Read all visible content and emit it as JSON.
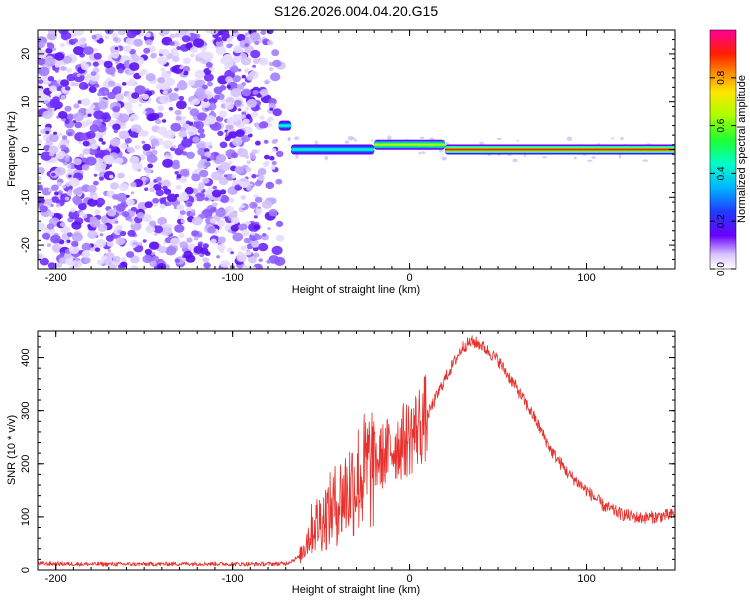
{
  "figure": {
    "title": "S126.2026.004.04.20.G15"
  },
  "chart_data": [
    {
      "type": "heatmap",
      "xlabel": "Height of straight line (km)",
      "ylabel": "Frequency (Hz)",
      "xlim": [
        -210,
        150
      ],
      "ylim": [
        -25,
        25
      ],
      "x_ticks": [
        -200,
        -100,
        0,
        100
      ],
      "y_ticks": [
        -20,
        -10,
        0,
        10,
        20
      ],
      "colorbar": {
        "label": "Normalized spectral amplitude",
        "range": [
          0,
          1
        ],
        "ticks": [
          0.0,
          0.2,
          0.4,
          0.6,
          0.8
        ],
        "colormap": "rainbow (purple-blue-cyan-green-yellow-red-magenta)"
      },
      "features": {
        "noise_region_x": [
          -210,
          -75
        ],
        "signal_segments": [
          {
            "x": [
              -74,
              -67
            ],
            "freq": 5,
            "amplitude": 0.45
          },
          {
            "x": [
              -67,
              -20
            ],
            "freq": 0,
            "amplitude": 0.5
          },
          {
            "x": [
              -20,
              20
            ],
            "freq": 1,
            "amplitude": 0.7
          },
          {
            "x": [
              20,
              150
            ],
            "freq": 0,
            "amplitude": 0.9
          }
        ]
      }
    },
    {
      "type": "line",
      "xlabel": "Height of straight line (km)",
      "ylabel": "SNR (10 * v/v)",
      "xlim": [
        -210,
        150
      ],
      "ylim": [
        0,
        450
      ],
      "x_ticks": [
        -200,
        -100,
        0,
        100
      ],
      "y_ticks": [
        0,
        100,
        200,
        300,
        400
      ],
      "line_color": "#e8302c",
      "series": [
        {
          "x": [
            -210,
            -180,
            -150,
            -120,
            -90,
            -70,
            -62,
            -55,
            -48,
            -40,
            -30,
            -20,
            -10,
            0,
            10,
            20,
            30,
            35,
            40,
            50,
            60,
            70,
            80,
            90,
            100,
            110,
            120,
            130,
            140,
            150
          ],
          "values": [
            12,
            11,
            11,
            12,
            11,
            12,
            25,
            80,
            100,
            130,
            170,
            200,
            230,
            250,
            290,
            360,
            420,
            430,
            425,
            395,
            345,
            290,
            225,
            180,
            150,
            120,
            105,
            98,
            100,
            105
          ]
        }
      ]
    }
  ]
}
